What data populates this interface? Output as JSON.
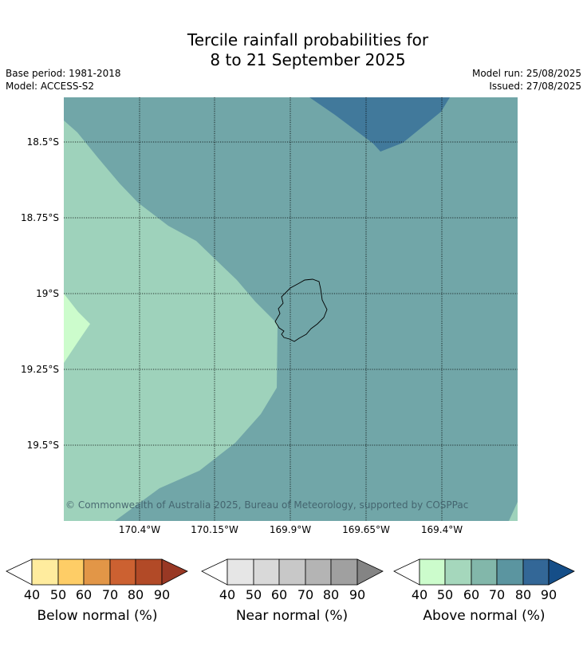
{
  "title_lines": [
    "Tercile rainfall probabilities for",
    "8 to 21 September 2025"
  ],
  "meta_left": [
    "Base period: 1981-2018",
    "Model: ACCESS-S2"
  ],
  "meta_right": [
    "Model run: 25/08/2025",
    "Issued: 27/08/2025"
  ],
  "lat_labels": [
    "18.5°S",
    "18.75°S",
    "19°S",
    "19.25°S",
    "19.5°S"
  ],
  "lon_labels": [
    "170.4°W",
    "170.15°W",
    "169.9°W",
    "169.65°W",
    "169.4°W"
  ],
  "copyright": "© Commonwealth of Australia 2025, Bureau of Meteorology, supported by COSPPac",
  "map_colors": {
    "above_40_50": "#ccfccc",
    "above_50_60": "#9ed2bb",
    "above_60_70": "#71a6a8",
    "above_70_80": "#41799b",
    "gridline": "#000000",
    "coastline": "#000000"
  },
  "colorbars": [
    {
      "name": "Below normal (%)",
      "ticks": [
        "40",
        "50",
        "60",
        "70",
        "80",
        "90"
      ],
      "colors": [
        "#ffffff",
        "#ffec9e",
        "#fecd66",
        "#e29647",
        "#cc6131",
        "#b24a27",
        "#993824"
      ]
    },
    {
      "name": "Near normal (%)",
      "ticks": [
        "40",
        "50",
        "60",
        "70",
        "80",
        "90"
      ],
      "colors": [
        "#ffffff",
        "#e6e6e6",
        "#d9d9d9",
        "#c8c8c8",
        "#b4b4b4",
        "#a0a0a0",
        "#848484"
      ]
    },
    {
      "name": "Above normal (%)",
      "ticks": [
        "40",
        "50",
        "60",
        "70",
        "80",
        "90"
      ],
      "colors": [
        "#ffffff",
        "#ccfccc",
        "#a5d7bc",
        "#82b7aa",
        "#5b95a0",
        "#336797",
        "#154e88"
      ]
    }
  ]
}
